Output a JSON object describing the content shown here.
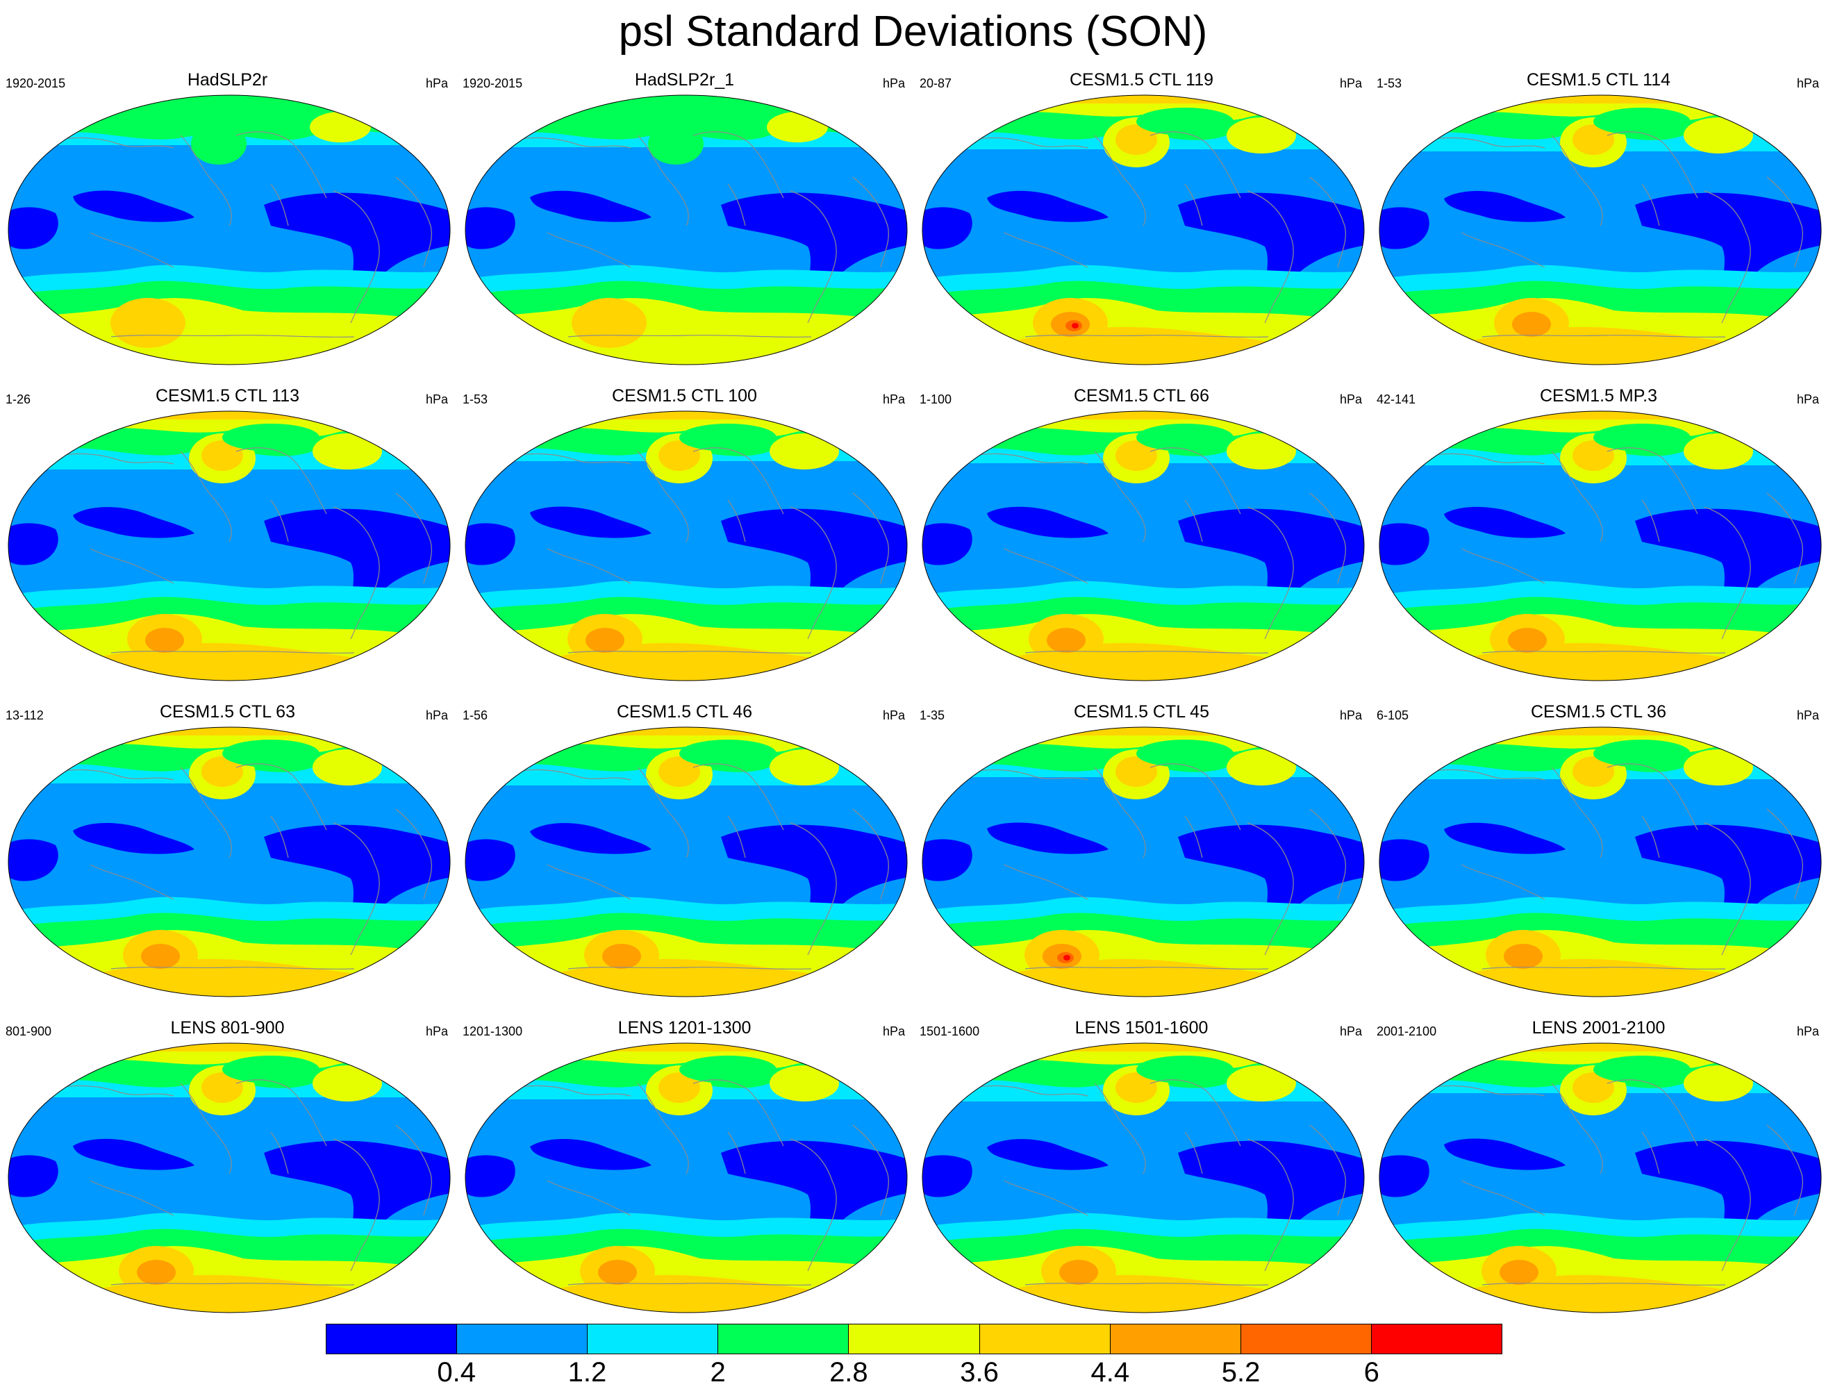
{
  "title": "psl Standard Deviations (SON)",
  "colors": {
    "levels": [
      "#0000ff",
      "#0099ff",
      "#00e8ff",
      "#00ff55",
      "#e6ff00",
      "#ffd400",
      "#ff9f00",
      "#ff6600",
      "#ff0000"
    ],
    "coast": "#8c8c8c",
    "outline": "#000000"
  },
  "colorbar": {
    "labels": [
      "0.4",
      "1.2",
      "2",
      "2.8",
      "3.6",
      "4.4",
      "5.2",
      "6"
    ]
  },
  "panels": [
    {
      "title": "HadSLP2r",
      "period": "1920-2015",
      "units": "hPa"
    },
    {
      "title": "HadSLP2r_1",
      "period": "1920-2015",
      "units": "hPa"
    },
    {
      "title": "CESM1.5 CTL 119",
      "period": "20-87",
      "units": "hPa"
    },
    {
      "title": "CESM1.5 CTL 114",
      "period": "1-53",
      "units": "hPa"
    },
    {
      "title": "CESM1.5 CTL 113",
      "period": "1-26",
      "units": "hPa"
    },
    {
      "title": "CESM1.5 CTL 100",
      "period": "1-53",
      "units": "hPa"
    },
    {
      "title": "CESM1.5 CTL 66",
      "period": "1-100",
      "units": "hPa"
    },
    {
      "title": "CESM1.5 MP.3",
      "period": "42-141",
      "units": "hPa"
    },
    {
      "title": "CESM1.5 CTL 63",
      "period": "13-112",
      "units": "hPa"
    },
    {
      "title": "CESM1.5 CTL 46",
      "period": "1-56",
      "units": "hPa"
    },
    {
      "title": "CESM1.5 CTL 45",
      "period": "1-35",
      "units": "hPa"
    },
    {
      "title": "CESM1.5 CTL 36",
      "period": "6-105",
      "units": "hPa"
    },
    {
      "title": "LENS 801-900",
      "period": "801-900",
      "units": "hPa"
    },
    {
      "title": "LENS 1201-1300",
      "period": "1201-1300",
      "units": "hPa"
    },
    {
      "title": "LENS 1501-1600",
      "period": "1501-1600",
      "units": "hPa"
    },
    {
      "title": "LENS 2001-2100",
      "period": "2001-2100",
      "units": "hPa"
    }
  ]
}
